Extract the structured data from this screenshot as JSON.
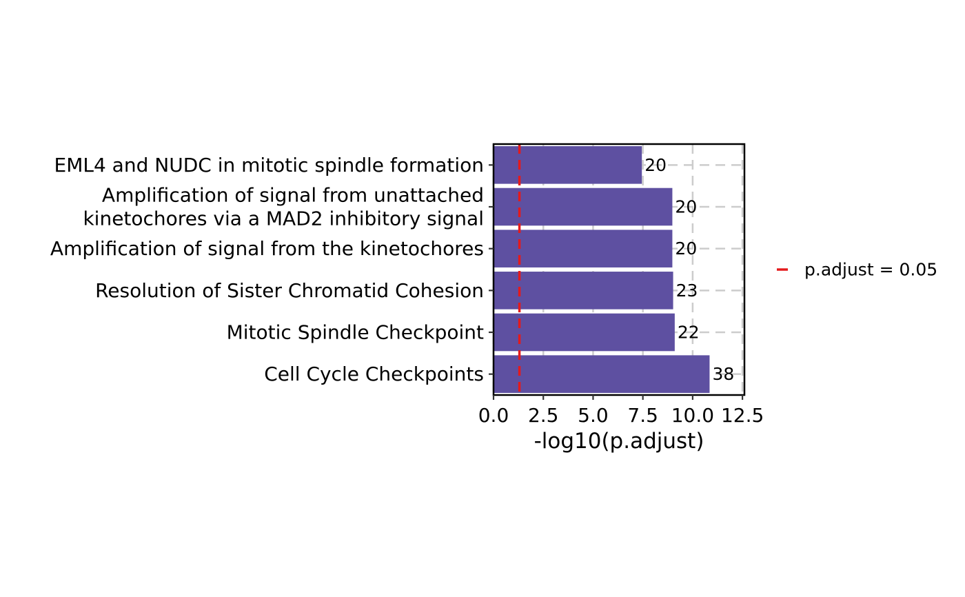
{
  "chart_data": {
    "type": "bar",
    "orientation": "horizontal",
    "categories": [
      "Cell Cycle Checkpoints",
      "Mitotic Spindle Checkpoint",
      "Resolution of Sister Chromatid Cohesion",
      "Amplification of signal from the kinetochores",
      "Amplification of signal from unattached\nkinetochores via a MAD2 inhibitory signal",
      "EML4 and NUDC in mitotic spindle formation"
    ],
    "values": [
      10.85,
      9.1,
      9.02,
      8.98,
      8.98,
      7.45
    ],
    "bar_labels": [
      "38",
      "22",
      "23",
      "20",
      "20",
      "20"
    ],
    "xlabel": "-log10(p.adjust)",
    "ylabel": "",
    "xlim": [
      0,
      12.6
    ],
    "xticks": [
      0,
      2.5,
      5,
      7.5,
      10,
      12.5
    ],
    "xtick_labels": [
      "0.0",
      "2.5",
      "5.0",
      "7.5",
      "10.0",
      "12.5"
    ],
    "bar_color": "#5E50A1",
    "reference_line": {
      "x": 1.30103,
      "color": "#E41A1C",
      "style": "dashed"
    },
    "legend": {
      "label": "p.adjust = 0.05",
      "placement": "right"
    },
    "grid": true
  }
}
